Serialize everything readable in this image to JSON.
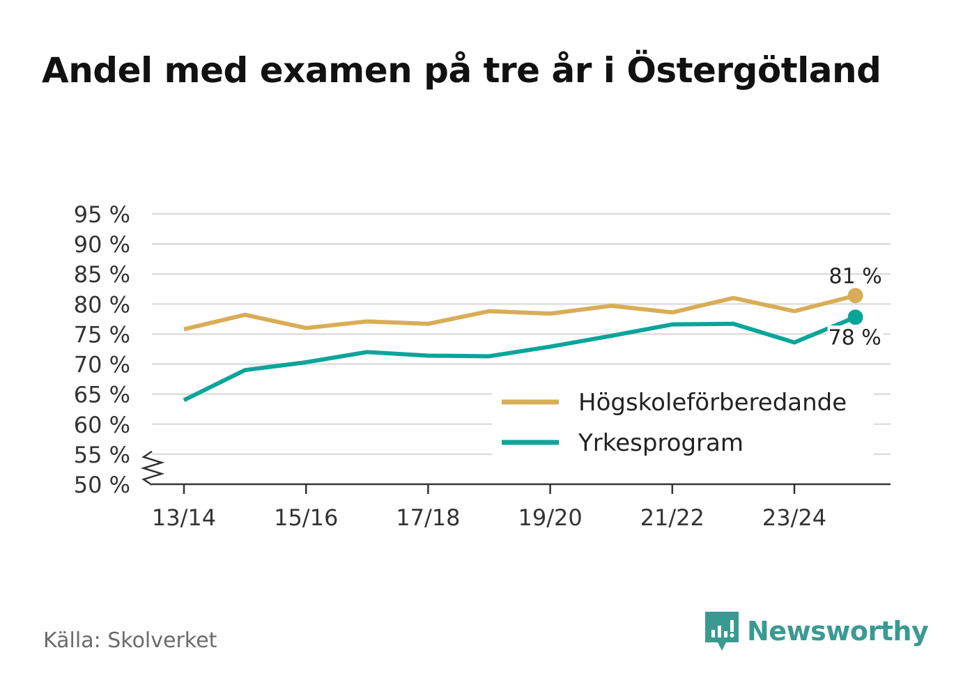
{
  "title": "Andel med examen på tre år i Östergötland",
  "source": "Källa: Skolverket",
  "brand": {
    "name": "Newsworthy",
    "icon": "newsworthy-logo-icon",
    "color": "#3a9a92"
  },
  "colors": {
    "hogskole": "#d9ad57",
    "yrkes": "#0aa59a",
    "grid": "#dddddd",
    "axis": "#333333"
  },
  "chart_data": {
    "type": "line",
    "title": "Andel med examen på tre år i Östergötland",
    "xlabel": "",
    "ylabel": "",
    "categories": [
      "13/14",
      "14/15",
      "15/16",
      "16/17",
      "17/18",
      "18/19",
      "19/20",
      "20/21",
      "21/22",
      "22/23",
      "23/24",
      "24/25"
    ],
    "x_tick_labels": [
      "13/14",
      "15/16",
      "17/18",
      "19/20",
      "21/22",
      "23/24"
    ],
    "y_tick_labels": [
      "50 %",
      "55 %",
      "60 %",
      "65 %",
      "70 %",
      "75 %",
      "80 %",
      "85 %",
      "90 %",
      "95 %"
    ],
    "ylim": [
      50,
      95
    ],
    "y_axis_break": true,
    "grid": true,
    "legend_position": "bottom-right",
    "series": [
      {
        "name": "Högskoleförberedande",
        "color": "#d9ad57",
        "values": [
          75.8,
          78.2,
          76.0,
          77.1,
          76.7,
          78.8,
          78.4,
          79.7,
          78.6,
          81.0,
          78.8,
          81.4
        ],
        "end_label": "81 %"
      },
      {
        "name": "Yrkesprogram",
        "color": "#0aa59a",
        "values": [
          64.0,
          69.0,
          70.3,
          72.0,
          71.4,
          71.3,
          72.9,
          74.7,
          76.6,
          76.7,
          73.6,
          77.8
        ],
        "end_label": "78 %"
      }
    ]
  }
}
